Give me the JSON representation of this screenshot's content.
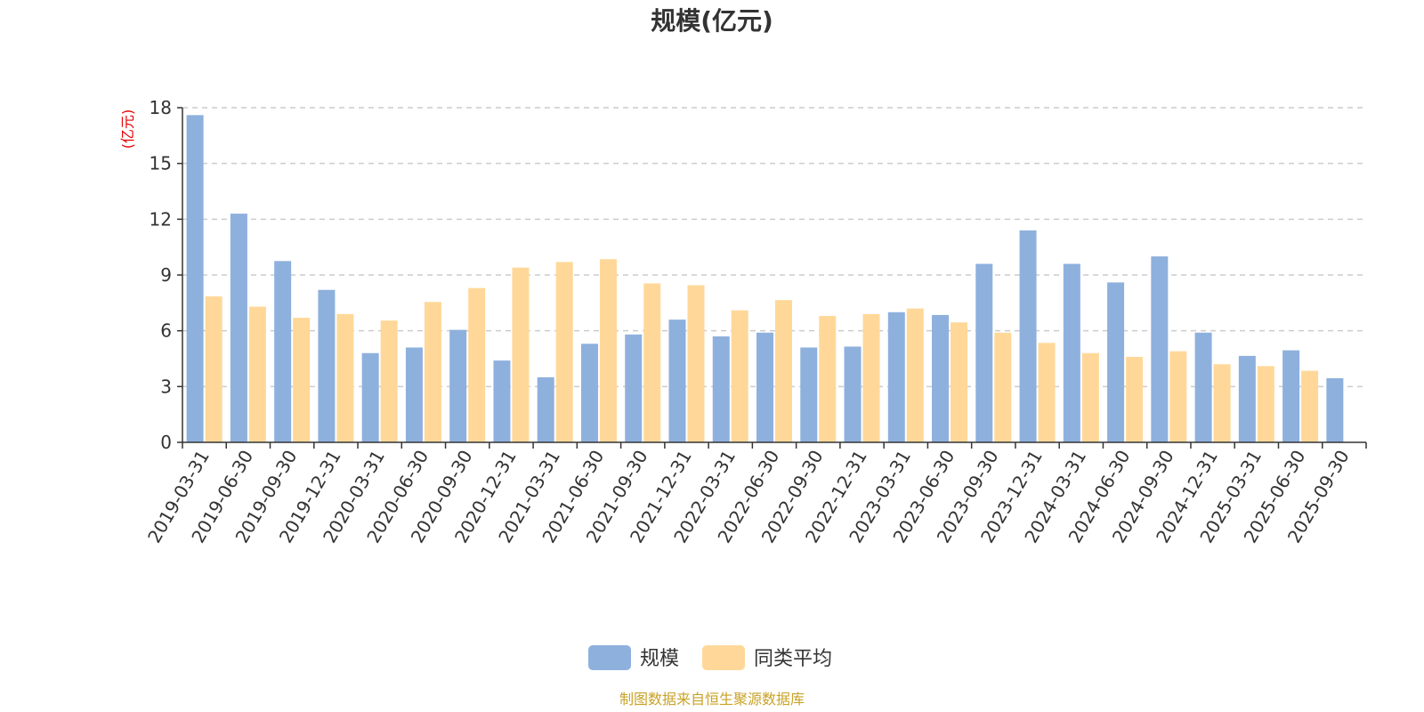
{
  "chart_data": {
    "type": "bar",
    "title": "规模(亿元)",
    "ylabel": "(亿元)",
    "ylim": [
      0,
      18
    ],
    "yticks": [
      0,
      3,
      6,
      9,
      12,
      15,
      18
    ],
    "grid": true,
    "legend_position": "bottom-center",
    "categories": [
      "2019-03-31",
      "2019-06-30",
      "2019-09-30",
      "2019-12-31",
      "2020-03-31",
      "2020-06-30",
      "2020-09-30",
      "2020-12-31",
      "2021-03-31",
      "2021-06-30",
      "2021-09-30",
      "2021-12-31",
      "2022-03-31",
      "2022-06-30",
      "2022-09-30",
      "2022-12-31",
      "2023-03-31",
      "2023-06-30",
      "2023-09-30",
      "2023-12-31",
      "2024-03-31",
      "2024-06-30",
      "2024-09-30",
      "2024-12-31",
      "2025-03-31",
      "2025-06-30",
      "2025-09-30"
    ],
    "series": [
      {
        "name": "规模",
        "color": "#8eb0dd",
        "values": [
          17.6,
          12.3,
          9.75,
          8.2,
          4.8,
          5.1,
          6.05,
          4.4,
          3.5,
          5.3,
          5.8,
          6.6,
          5.7,
          5.9,
          5.1,
          5.15,
          7.0,
          6.85,
          9.6,
          11.4,
          9.6,
          8.6,
          10.0,
          5.9,
          4.65,
          4.95,
          3.45
        ]
      },
      {
        "name": "同类平均",
        "color": "#ffd899",
        "values": [
          7.85,
          7.3,
          6.7,
          6.9,
          6.55,
          7.55,
          8.3,
          9.4,
          9.7,
          9.85,
          8.55,
          8.45,
          7.1,
          7.65,
          6.8,
          6.9,
          7.2,
          6.45,
          5.9,
          5.35,
          4.8,
          4.6,
          4.9,
          4.2,
          4.1,
          3.85,
          null
        ]
      }
    ]
  },
  "source_note": "制图数据来自恒生聚源数据库"
}
